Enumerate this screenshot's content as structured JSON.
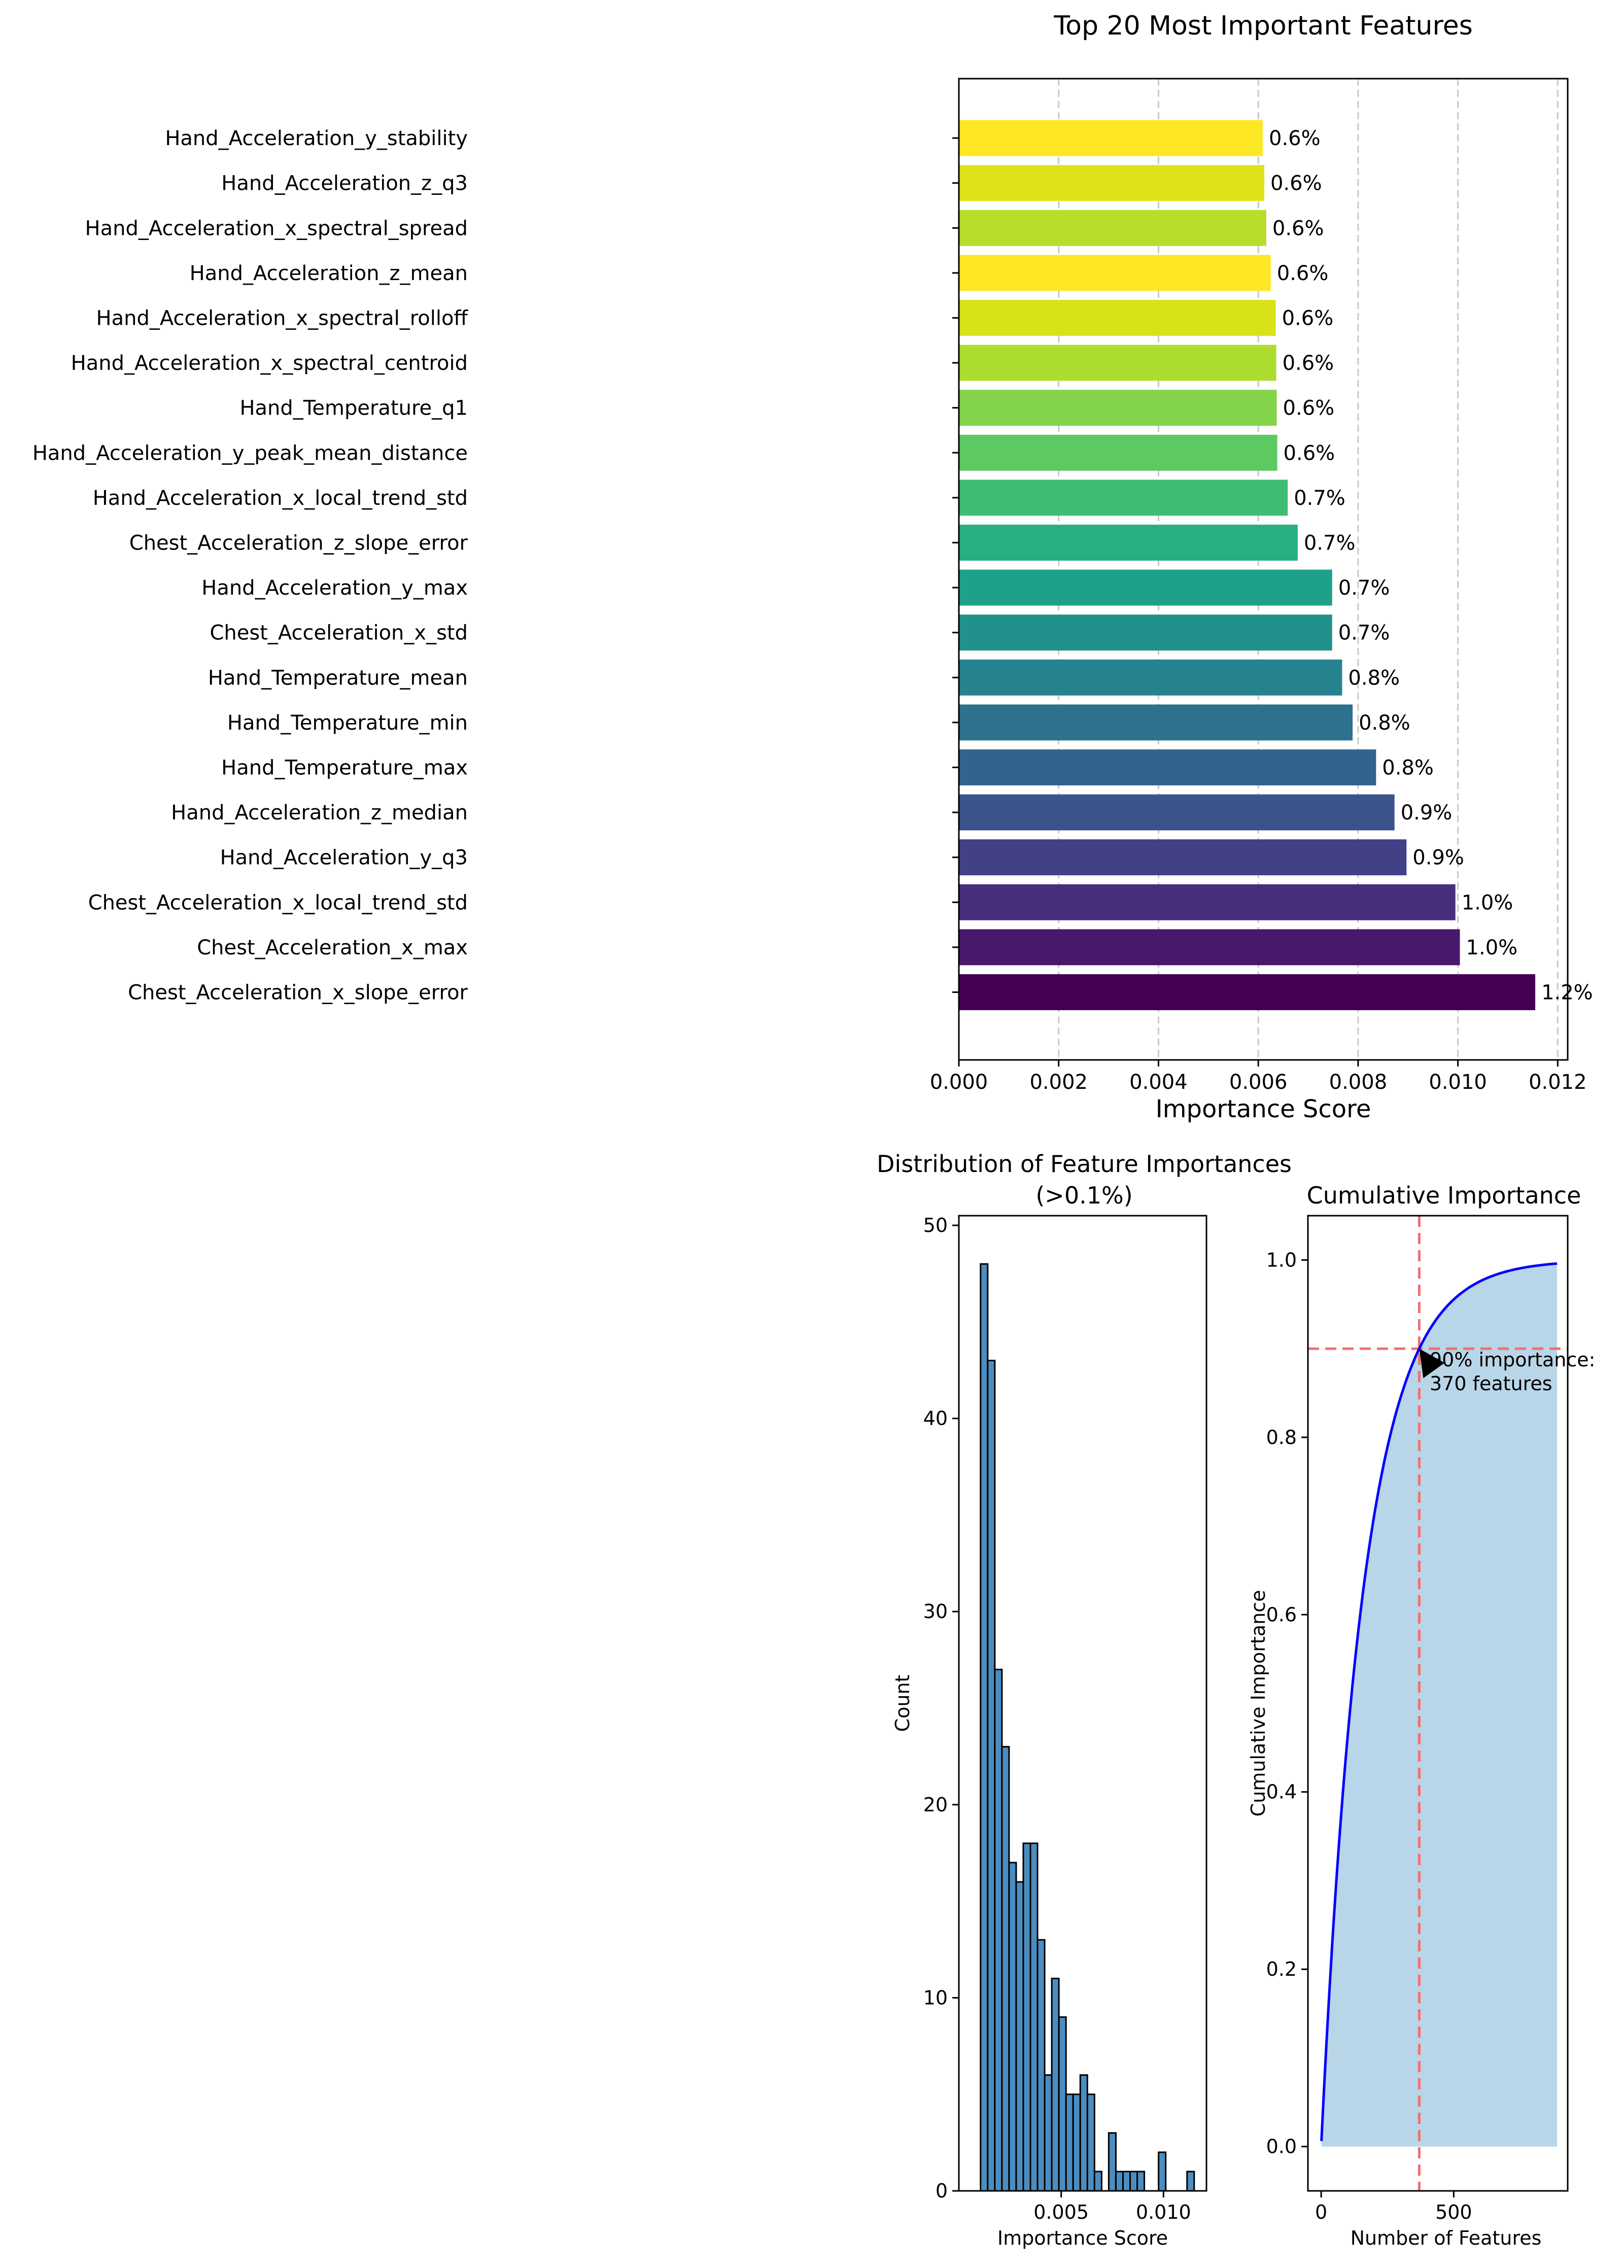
{
  "chart_data": [
    {
      "type": "bar",
      "orientation": "horizontal",
      "title": "Top 20 Most Important Features",
      "xlabel": "Importance Score",
      "ylabel": "",
      "xlim": [
        0,
        0.0122
      ],
      "x_ticks": [
        "0.000",
        "0.002",
        "0.004",
        "0.006",
        "0.008",
        "0.010",
        "0.012"
      ],
      "x_tick_values": [
        0,
        0.002,
        0.004,
        0.006,
        0.008,
        0.01,
        0.012
      ],
      "grid": "x, dashed",
      "colormap": "viridis",
      "bars": [
        {
          "label": "Chest_Acceleration_x_slope_error",
          "value": 0.01155,
          "display": "1.2%",
          "color": "#440154"
        },
        {
          "label": "Chest_Acceleration_x_max",
          "value": 0.01004,
          "display": "1.0%",
          "color": "#48186a"
        },
        {
          "label": "Chest_Acceleration_x_local_trend_std",
          "value": 0.00995,
          "display": "1.0%",
          "color": "#472d7b"
        },
        {
          "label": "Hand_Acceleration_y_q3",
          "value": 0.00897,
          "display": "0.9%",
          "color": "#424086"
        },
        {
          "label": "Hand_Acceleration_z_median",
          "value": 0.00873,
          "display": "0.9%",
          "color": "#3b528b"
        },
        {
          "label": "Hand_Temperature_max",
          "value": 0.00836,
          "display": "0.8%",
          "color": "#33638d"
        },
        {
          "label": "Hand_Temperature_min",
          "value": 0.00789,
          "display": "0.8%",
          "color": "#2c728e"
        },
        {
          "label": "Hand_Temperature_mean",
          "value": 0.00768,
          "display": "0.8%",
          "color": "#26828e"
        },
        {
          "label": "Chest_Acceleration_x_std",
          "value": 0.00748,
          "display": "0.7%",
          "color": "#21918c"
        },
        {
          "label": "Hand_Acceleration_y_max",
          "value": 0.00748,
          "display": "0.7%",
          "color": "#1fa088"
        },
        {
          "label": "Chest_Acceleration_z_slope_error",
          "value": 0.00679,
          "display": "0.7%",
          "color": "#28ae80"
        },
        {
          "label": "Hand_Acceleration_x_local_trend_std",
          "value": 0.00659,
          "display": "0.7%",
          "color": "#3fbc73"
        },
        {
          "label": "Hand_Acceleration_y_peak_mean_distance",
          "value": 0.00638,
          "display": "0.6%",
          "color": "#5ec962"
        },
        {
          "label": "Hand_Temperature_q1",
          "value": 0.00637,
          "display": "0.6%",
          "color": "#84d44b"
        },
        {
          "label": "Hand_Acceleration_x_spectral_centroid",
          "value": 0.00636,
          "display": "0.6%",
          "color": "#addc30"
        },
        {
          "label": "Hand_Acceleration_x_spectral_rolloff",
          "value": 0.00635,
          "display": "0.6%",
          "color": "#d8e219"
        },
        {
          "label": "Hand_Acceleration_z_mean",
          "value": 0.00625,
          "display": "0.6%",
          "color": "#fde725"
        },
        {
          "label": "Hand_Acceleration_x_spectral_spread",
          "value": 0.00616,
          "display": "0.6%",
          "color": "#b6de2b"
        },
        {
          "label": "Hand_Acceleration_z_q3",
          "value": 0.00612,
          "display": "0.6%",
          "color": "#dde318"
        },
        {
          "label": "Hand_Acceleration_y_stability",
          "value": 0.00609,
          "display": "0.6%",
          "color": "#fde725"
        }
      ]
    },
    {
      "type": "histogram",
      "title_line1": "Distribution of Feature Importances",
      "title_line2": "(>0.1%)",
      "xlabel": "Importance Score",
      "ylabel": "Count",
      "xlim": [
        0.0,
        0.0121
      ],
      "ylim": [
        0,
        50.5
      ],
      "x_ticks": [
        "0.005",
        "0.010"
      ],
      "x_tick_values": [
        0.005,
        0.01
      ],
      "y_ticks": [
        "0",
        "10",
        "20",
        "30",
        "40",
        "50"
      ],
      "y_tick_values": [
        0,
        10,
        20,
        30,
        40,
        50
      ],
      "bar_color": "#4c8dc0",
      "bins": {
        "start": 0.00106,
        "width": 0.000348,
        "counts": [
          48,
          43,
          27,
          23,
          17,
          16,
          18,
          18,
          13,
          6,
          11,
          9,
          5,
          5,
          6,
          5,
          1,
          0,
          3,
          1,
          1,
          1,
          1,
          0,
          0,
          2,
          0,
          0,
          0,
          1
        ]
      }
    },
    {
      "type": "area",
      "title": "Cumulative Importance",
      "xlabel": "Number of Features",
      "ylabel": "Cumulative Importance",
      "xlim": [
        -50,
        930
      ],
      "ylim": [
        -0.05,
        1.05
      ],
      "x_ticks": [
        "0",
        "500"
      ],
      "x_tick_values": [
        0,
        500
      ],
      "y_ticks": [
        "0.0",
        "0.2",
        "0.4",
        "0.6",
        "0.8",
        "1.0"
      ],
      "y_tick_values": [
        0,
        0.2,
        0.4,
        0.6,
        0.8,
        1.0
      ],
      "n_features": 890,
      "line_color": "#0000ff",
      "fill_color": "#b9d5e8",
      "threshold": {
        "y": 0.9,
        "x": 370,
        "color": "#f07070"
      },
      "annotation": {
        "line1": "90% importance:",
        "line2": "370 features"
      }
    }
  ]
}
